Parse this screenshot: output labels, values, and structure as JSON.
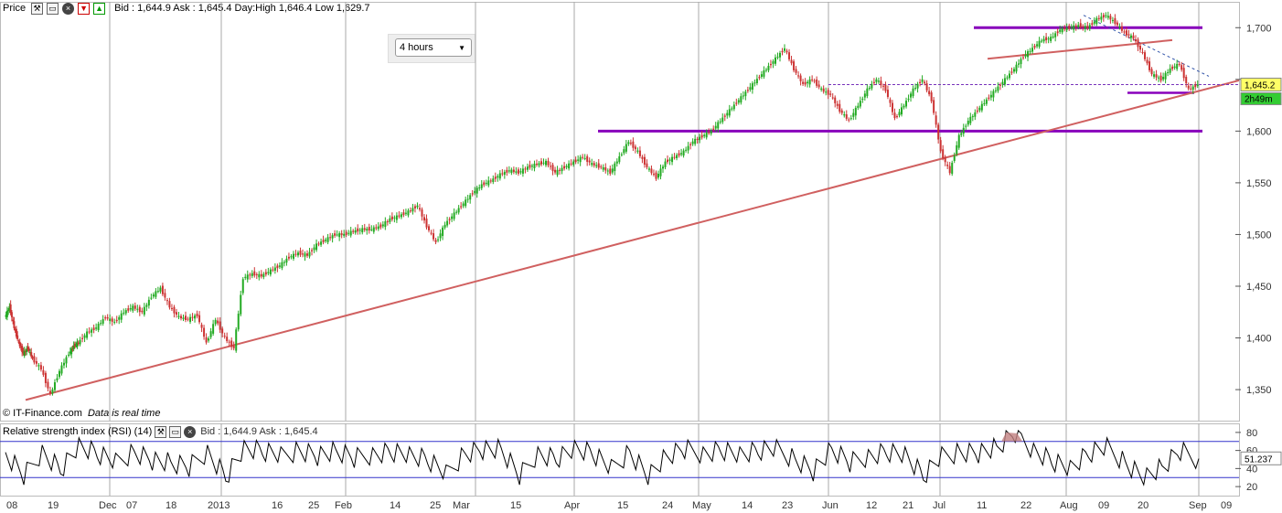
{
  "toolbar": {
    "title": "Price",
    "icons": [
      "wrench-icon",
      "window-icon",
      "close-icon",
      "down-arrow-icon",
      "up-arrow-icon"
    ],
    "quote": "Bid : 1,644.9 Ask : 1,645.4 Day:High 1,646.4 Low 1,629.7"
  },
  "timeframe": {
    "selected": "4 hours"
  },
  "credit": {
    "source": "© IT-Finance.com",
    "note": "Data is real time"
  },
  "price_badge": {
    "value": "1,645.2",
    "countdown": "2h49m"
  },
  "rsi_panel": {
    "title": "Relative strength index (RSI) (14)",
    "quote": "Bid : 1,644.9 Ask : 1,645.4",
    "current": "51.237"
  },
  "colors": {
    "up_candle": "#22aa22",
    "down_candle": "#cc3333",
    "trendline": "#d06060",
    "level": "#8800bb",
    "grid": "#aaaaaa"
  },
  "chart_data": [
    {
      "type": "candlestick",
      "title": "",
      "instrument_quote": "Bid : 1,644.9 Ask : 1,645.4 Day:High 1,646.4 Low 1,629.7",
      "timeframe": "4 hours",
      "ylim": [
        1320,
        1725
      ],
      "y_ticks": [
        1350,
        1400,
        1450,
        1500,
        1550,
        1600,
        1650,
        1700
      ],
      "y_tick_labels": [
        "1,350",
        "1,400",
        "1,450",
        "1,500",
        "1,550",
        "1,600",
        "",
        "1,700"
      ],
      "x_tick_labels": [
        "08",
        "19",
        "Dec",
        "07",
        "18",
        "2013",
        "16",
        "25",
        "Feb",
        "14",
        "25",
        "Mar",
        "15",
        "Apr",
        "15",
        "24",
        "May",
        "14",
        "23",
        "Jun",
        "12",
        "21",
        "Jul",
        "11",
        "22",
        "Aug",
        "09",
        "20",
        "Sep",
        "09"
      ],
      "series": [
        {
          "name": "price",
          "x": [
            0,
            5,
            10,
            15,
            20,
            25,
            30,
            40,
            50,
            60,
            70,
            75,
            80,
            90,
            100,
            110,
            120,
            130,
            140,
            150,
            160,
            170,
            180,
            190,
            200,
            210,
            220,
            230,
            240,
            250,
            260,
            270,
            280,
            290,
            300,
            310,
            320,
            330,
            340,
            350,
            360,
            370,
            380,
            390,
            400,
            410,
            420,
            430,
            440,
            450,
            460,
            470,
            480,
            490,
            500,
            510,
            520,
            530,
            540,
            550,
            560,
            570,
            580,
            590,
            600,
            610,
            620,
            630,
            640,
            650,
            660,
            670,
            680,
            690,
            700,
            710,
            720,
            730,
            740,
            750,
            760,
            770,
            780,
            790,
            800,
            810,
            820,
            830,
            840,
            850,
            860,
            870,
            880,
            890,
            900,
            910,
            920,
            930,
            940,
            950,
            960,
            970,
            980,
            990,
            1000,
            1010,
            1020,
            1030,
            1040,
            1050,
            1060,
            1070,
            1080,
            1090,
            1100,
            1110,
            1120,
            1130,
            1140,
            1150,
            1160,
            1170,
            1180,
            1190,
            1200,
            1210,
            1220,
            1230,
            1240,
            1250,
            1260,
            1270,
            1280,
            1290,
            1300
          ],
          "y": [
            1420,
            1430,
            1410,
            1395,
            1385,
            1390,
            1380,
            1370,
            1345,
            1368,
            1385,
            1392,
            1395,
            1405,
            1410,
            1420,
            1415,
            1425,
            1430,
            1425,
            1440,
            1448,
            1430,
            1420,
            1418,
            1422,
            1395,
            1418,
            1400,
            1390,
            1458,
            1462,
            1460,
            1465,
            1470,
            1478,
            1482,
            1480,
            1490,
            1495,
            1500,
            1500,
            1503,
            1505,
            1505,
            1508,
            1515,
            1518,
            1522,
            1528,
            1508,
            1492,
            1510,
            1520,
            1530,
            1540,
            1548,
            1552,
            1558,
            1562,
            1560,
            1565,
            1568,
            1570,
            1560,
            1565,
            1570,
            1575,
            1568,
            1565,
            1560,
            1575,
            1590,
            1580,
            1565,
            1555,
            1570,
            1575,
            1580,
            1590,
            1595,
            1600,
            1610,
            1620,
            1630,
            1640,
            1650,
            1660,
            1670,
            1680,
            1660,
            1645,
            1650,
            1640,
            1635,
            1620,
            1610,
            1625,
            1640,
            1650,
            1640,
            1612,
            1625,
            1640,
            1650,
            1630,
            1580,
            1560,
            1595,
            1610,
            1620,
            1630,
            1640,
            1650,
            1660,
            1672,
            1680,
            1688,
            1690,
            1698,
            1700,
            1702,
            1700,
            1708,
            1712,
            1705,
            1695,
            1690,
            1675,
            1655,
            1650,
            1660,
            1665,
            1640,
            1645
          ]
        },
        {
          "name": "RSI (14)",
          "x": [
            0,
            20,
            40,
            60,
            80,
            100,
            120,
            140,
            160,
            180,
            200,
            220,
            240,
            260,
            280,
            300,
            320,
            340,
            360,
            380,
            400,
            420,
            440,
            460,
            480,
            500,
            520,
            540,
            560,
            580,
            600,
            620,
            640,
            660,
            680,
            700,
            720,
            740,
            760,
            780,
            800,
            820,
            840,
            860,
            880,
            900,
            920,
            940,
            960,
            980,
            1000,
            1020,
            1040,
            1060,
            1080,
            1100,
            1120,
            1140,
            1160,
            1180,
            1200,
            1220,
            1240,
            1260,
            1280,
            1300
          ],
          "y": [
            55,
            30,
            60,
            40,
            65,
            55,
            45,
            60,
            50,
            45,
            40,
            60,
            32,
            62,
            58,
            52,
            62,
            55,
            58,
            50,
            57,
            60,
            55,
            48,
            32,
            58,
            62,
            60,
            30,
            58,
            52,
            62,
            55,
            38,
            60,
            32,
            52,
            60,
            58,
            62,
            55,
            58,
            60,
            52,
            38,
            60,
            45,
            55,
            60,
            55,
            30,
            52,
            60,
            58,
            62,
            78,
            62,
            50,
            40,
            55,
            62,
            48,
            30,
            40,
            58,
            51
          ]
        }
      ],
      "annotations": [
        "uptrend line",
        "support 1,600",
        "resistance 1,700",
        "channel lines",
        "dotted current price line"
      ]
    },
    {
      "type": "line",
      "title": "Relative strength index (RSI) (14)",
      "ylim": [
        10,
        90
      ],
      "y_ticks": [
        20,
        40,
        60,
        80
      ],
      "current_value": 51.237
    }
  ]
}
